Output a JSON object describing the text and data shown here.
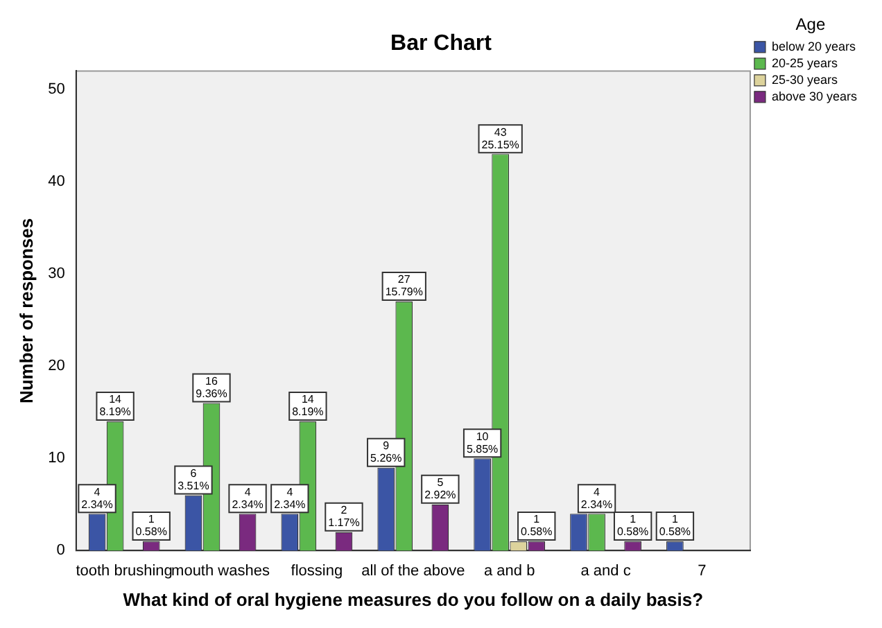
{
  "chart_data": {
    "type": "bar",
    "title": "Bar Chart",
    "xlabel": "What kind of oral hygiene measures do you follow on a daily basis?",
    "ylabel": "Number of responses",
    "legend_title": "Age",
    "legend": "top right",
    "grid": false,
    "categories": [
      "tooth brushing",
      "mouth washes",
      "flossing",
      "all of the above",
      "a and b",
      "a and c",
      "7"
    ],
    "ylim": [
      0,
      52
    ],
    "yticks": [
      0,
      10,
      20,
      30,
      40,
      50
    ],
    "series": [
      {
        "name": "below 20 years",
        "color": "#3b55a5",
        "values": [
          4,
          6,
          4,
          9,
          10,
          4,
          1
        ],
        "value_labels": [
          "4\n2.34%",
          "6\n3.51%",
          "4\n2.34%",
          "9\n5.26%",
          "10\n5.85%",
          null,
          "1\n0.58%"
        ]
      },
      {
        "name": "20-25 years",
        "color": "#5cb84e",
        "values": [
          14,
          16,
          14,
          27,
          43,
          4,
          null
        ],
        "value_labels": [
          "14\n8.19%",
          "16\n9.36%",
          "14\n8.19%",
          "27\n15.79%",
          "43\n25.15%",
          "4\n2.34%",
          null
        ]
      },
      {
        "name": "25-30 years",
        "color": "#ddd39c",
        "values": [
          null,
          null,
          null,
          null,
          1,
          null,
          null
        ],
        "value_labels": [
          null,
          null,
          null,
          null,
          null,
          null,
          null
        ]
      },
      {
        "name": "above 30 years",
        "color": "#7a2a7f",
        "values": [
          1,
          4,
          2,
          5,
          1,
          1,
          null
        ],
        "value_labels": [
          "1\n0.58%",
          "4\n2.34%",
          "2\n1.17%",
          "5\n2.92%",
          "1\n0.58%",
          "1\n0.58%",
          null
        ]
      }
    ]
  }
}
